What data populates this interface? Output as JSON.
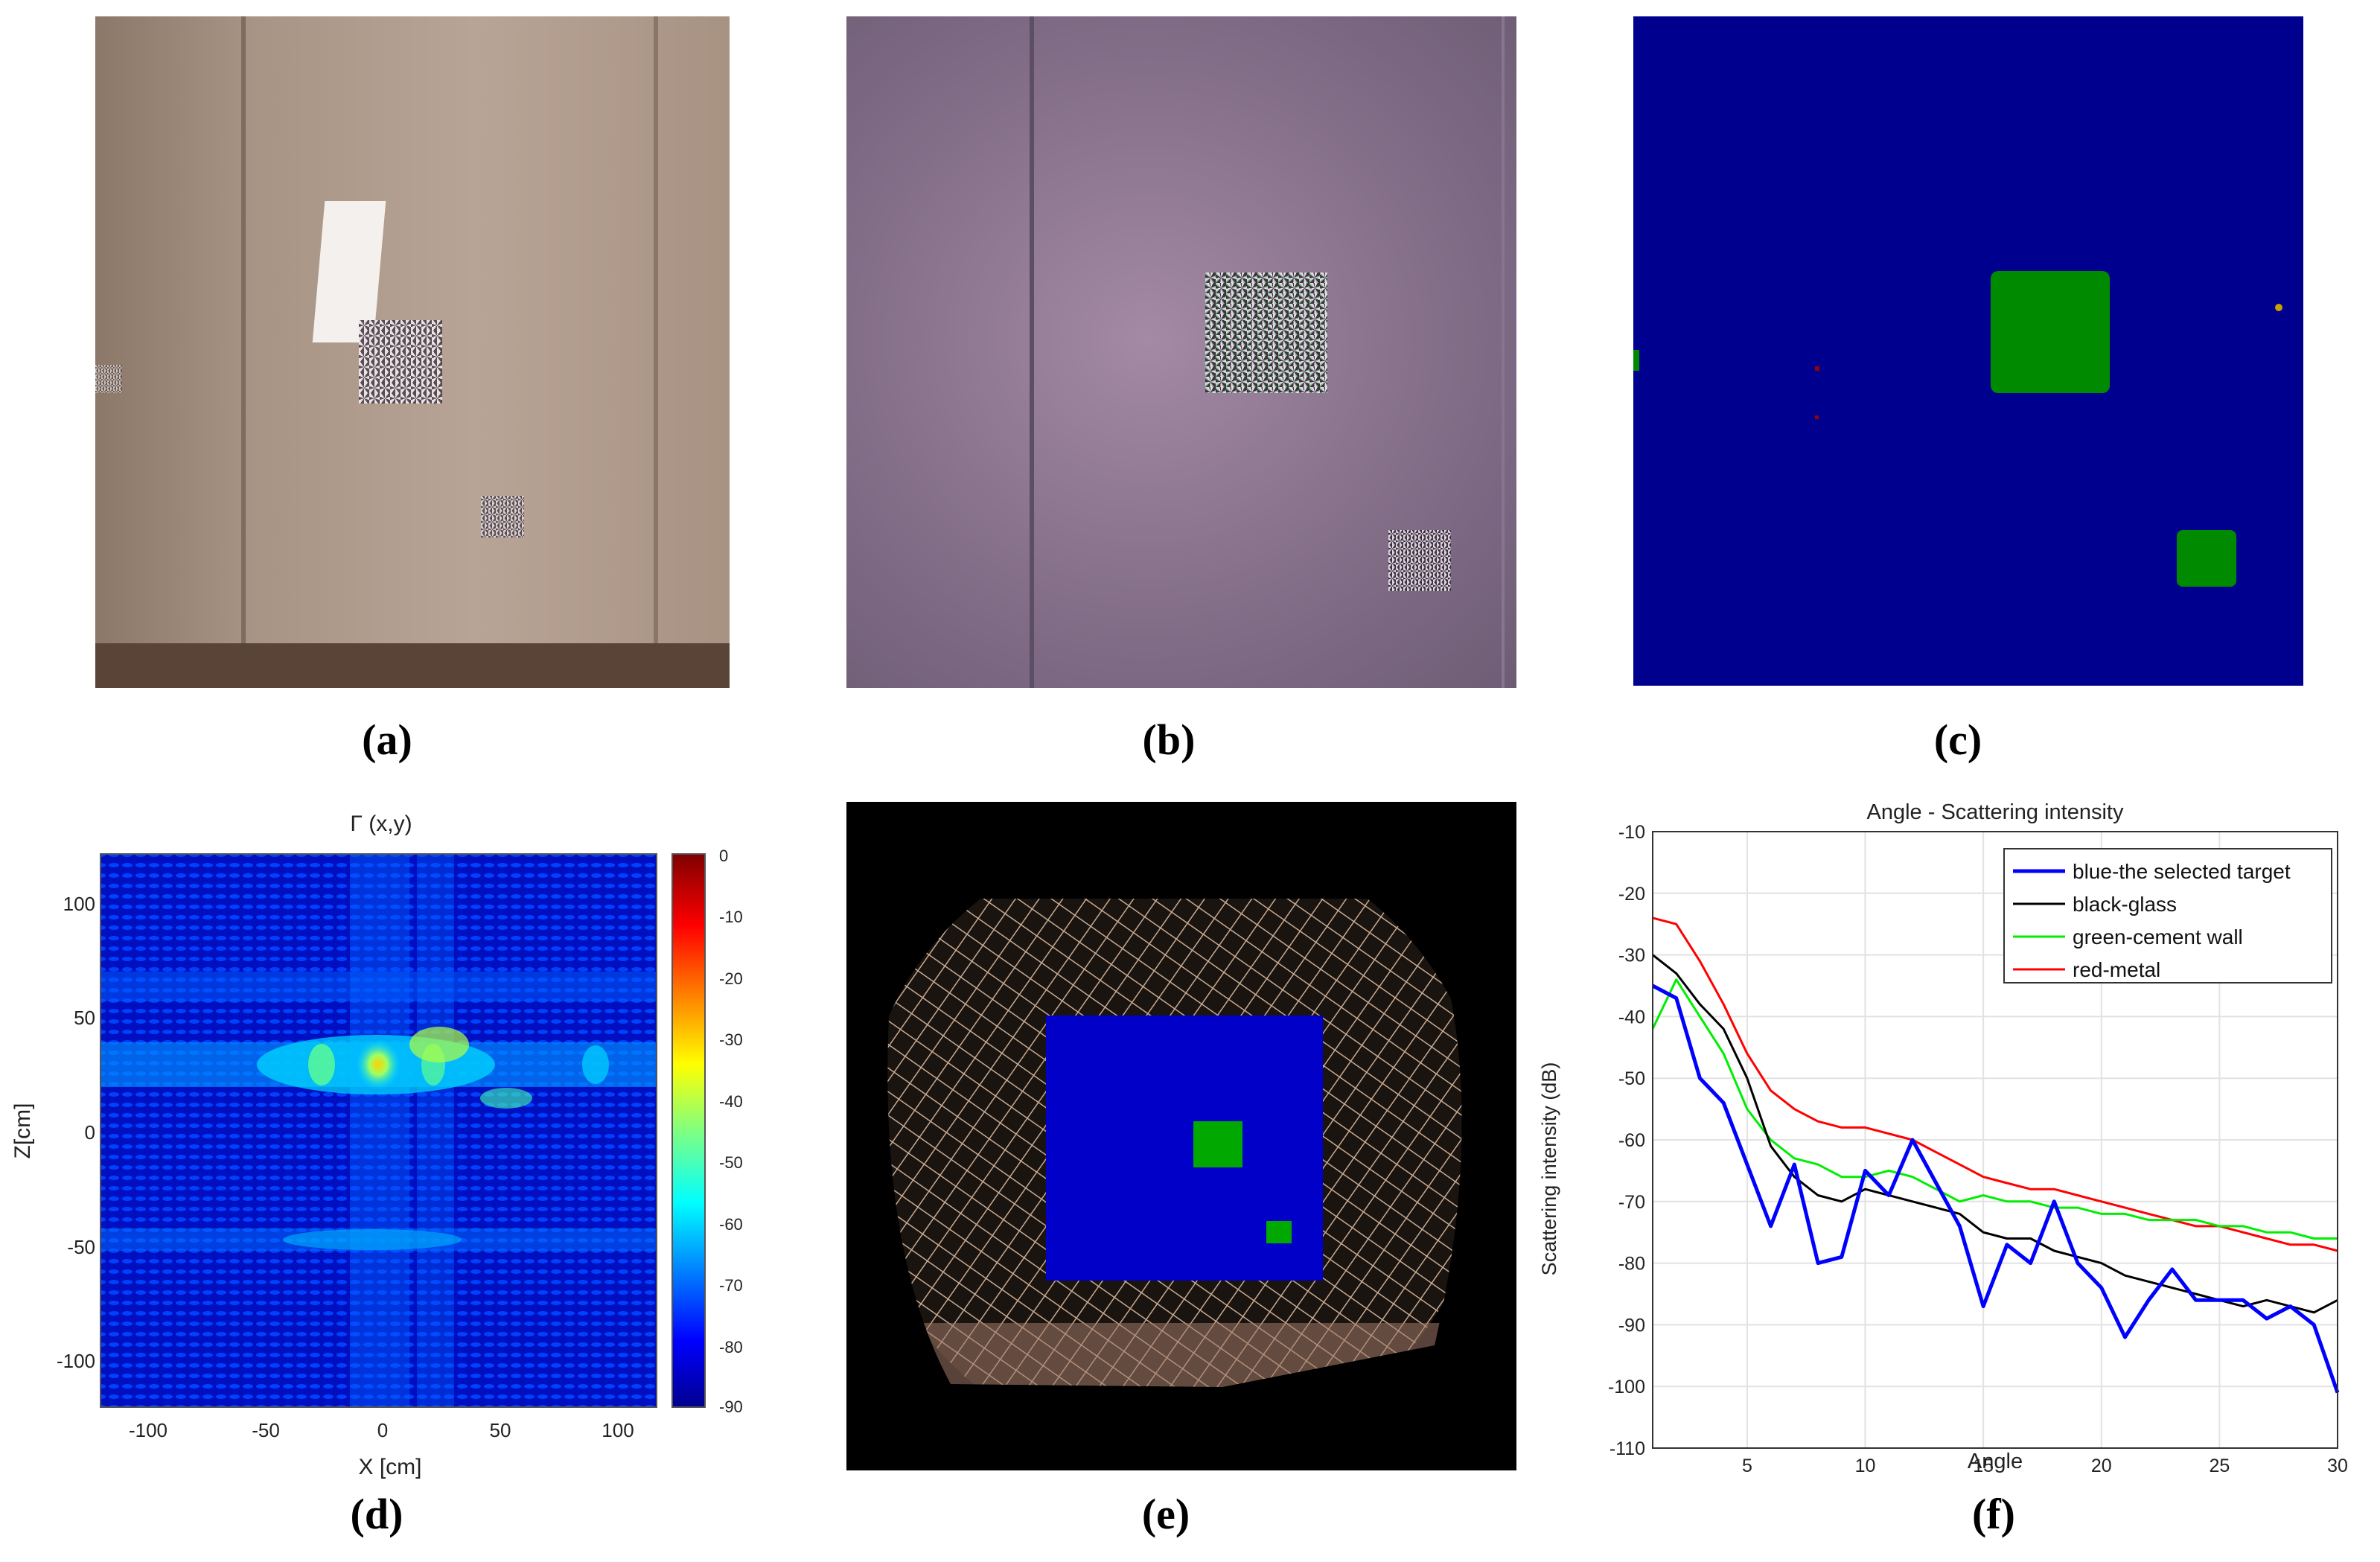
{
  "captions": {
    "a": "(a)",
    "b": "(b)",
    "c": "(c)",
    "d": "(d)",
    "e": "(e)",
    "f": "(f)"
  },
  "panel_d": {
    "title": "Γ (x,y)",
    "xlabel": "X [cm]",
    "ylabel": "Z[cm]",
    "xticks": [
      "-100",
      "-50",
      "0",
      "50",
      "100"
    ],
    "yticks": [
      "100",
      "50",
      "0",
      "-50",
      "-100"
    ],
    "colorbar_ticks": [
      "0",
      "-10",
      "-20",
      "-30",
      "-40",
      "-50",
      "-60",
      "-70",
      "-80",
      "-90"
    ]
  },
  "chart_data": {
    "type": "line",
    "title": "Angle - Scattering intensity",
    "xlabel": "Angle",
    "ylabel": "Scattering intensity (dB)",
    "xlim": [
      1,
      30
    ],
    "ylim": [
      -110,
      -10
    ],
    "xticks": [
      5,
      10,
      15,
      20,
      25,
      30
    ],
    "yticks": [
      -10,
      -20,
      -30,
      -40,
      -50,
      -60,
      -70,
      -80,
      -90,
      -100,
      -110
    ],
    "grid": true,
    "legend_position": "top-right",
    "series": [
      {
        "name": "blue-the selected target",
        "color": "#0000ff",
        "x": [
          1,
          2,
          3,
          4,
          5,
          6,
          7,
          8,
          9,
          10,
          11,
          12,
          13,
          14,
          15,
          16,
          17,
          18,
          19,
          20,
          21,
          22,
          23,
          24,
          25,
          26,
          27,
          28,
          29,
          30
        ],
        "y": [
          -35,
          -37,
          -50,
          -54,
          -64,
          -74,
          -64,
          -80,
          -79,
          -65,
          -69,
          -60,
          -67,
          -74,
          -87,
          -77,
          -80,
          -70,
          -80,
          -84,
          -92,
          -86,
          -81,
          -86,
          -86,
          -86,
          -89,
          -87,
          -90,
          -101
        ]
      },
      {
        "name": "black-glass",
        "color": "#000000",
        "x": [
          1,
          2,
          3,
          4,
          5,
          6,
          7,
          8,
          9,
          10,
          11,
          12,
          13,
          14,
          15,
          16,
          17,
          18,
          19,
          20,
          21,
          22,
          23,
          24,
          25,
          26,
          27,
          28,
          29,
          30
        ],
        "y": [
          -30,
          -33,
          -38,
          -42,
          -50,
          -61,
          -66,
          -69,
          -70,
          -68,
          -69,
          -70,
          -71,
          -72,
          -75,
          -76,
          -76,
          -78,
          -79,
          -80,
          -82,
          -83,
          -84,
          -85,
          -86,
          -87,
          -86,
          -87,
          -88,
          -86
        ]
      },
      {
        "name": "green-cement wall",
        "color": "#00ee00",
        "x": [
          1,
          2,
          3,
          4,
          5,
          6,
          7,
          8,
          9,
          10,
          11,
          12,
          13,
          14,
          15,
          16,
          17,
          18,
          19,
          20,
          21,
          22,
          23,
          24,
          25,
          26,
          27,
          28,
          29,
          30
        ],
        "y": [
          -42,
          -34,
          -40,
          -46,
          -55,
          -60,
          -63,
          -64,
          -66,
          -66,
          -65,
          -66,
          -68,
          -70,
          -69,
          -70,
          -70,
          -71,
          -71,
          -72,
          -72,
          -73,
          -73,
          -73,
          -74,
          -74,
          -75,
          -75,
          -76,
          -76
        ]
      },
      {
        "name": "red-metal",
        "color": "#ff0000",
        "x": [
          1,
          2,
          3,
          4,
          5,
          6,
          7,
          8,
          9,
          10,
          11,
          12,
          13,
          14,
          15,
          16,
          17,
          18,
          19,
          20,
          21,
          22,
          23,
          24,
          25,
          26,
          27,
          28,
          29,
          30
        ],
        "y": [
          -24,
          -25,
          -31,
          -38,
          -46,
          -52,
          -55,
          -57,
          -58,
          -58,
          -59,
          -60,
          -62,
          -64,
          -66,
          -67,
          -68,
          -68,
          -69,
          -70,
          -71,
          -72,
          -73,
          -74,
          -74,
          -75,
          -76,
          -77,
          -77,
          -78
        ]
      }
    ]
  }
}
